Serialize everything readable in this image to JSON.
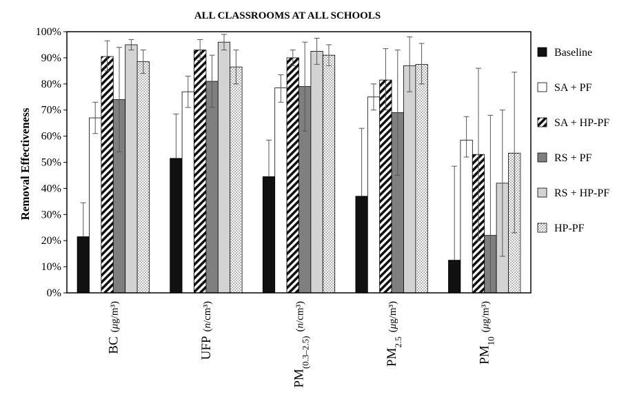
{
  "chart_data": {
    "type": "bar",
    "title": "ALL CLASSROOMS AT ALL SCHOOLS",
    "xlabel": "",
    "ylabel": "Removal Effectiveness",
    "ylim": [
      0,
      100
    ],
    "y_ticks": [
      "0%",
      "10%",
      "20%",
      "30%",
      "40%",
      "50%",
      "60%",
      "70%",
      "80%",
      "90%",
      "100%"
    ],
    "categories": [
      {
        "main": "BC",
        "sub": "",
        "unit": "(μg/m³)",
        "unit_italic": "μ"
      },
      {
        "main": "UFP",
        "sub": "",
        "unit": "(n/cm³)",
        "unit_italic": "n"
      },
      {
        "main": "PM",
        "sub": "(0.3–2.5)",
        "unit": "(n/cm³)",
        "unit_italic": "n"
      },
      {
        "main": "PM",
        "sub": "2.5",
        "unit": "(μg/m³)",
        "unit_italic": "μ"
      },
      {
        "main": "PM",
        "sub": "10",
        "unit": "(μg/m³)",
        "unit_italic": "μ"
      }
    ],
    "series": [
      {
        "name": "Baseline",
        "pattern": "solid-black",
        "values": [
          21.5,
          51.5,
          44.5,
          37,
          12.5
        ],
        "err_high": [
          34.5,
          68.5,
          58.5,
          63,
          48.5
        ]
      },
      {
        "name": "SA + PF",
        "pattern": "white",
        "values": [
          67,
          77,
          78.5,
          75,
          58.5
        ],
        "err_low": [
          61,
          71,
          73,
          70,
          52
        ],
        "err_high": [
          73,
          83,
          83.5,
          80,
          67.5
        ]
      },
      {
        "name": "SA + HP-PF",
        "pattern": "diagonal-stripes",
        "values": [
          90.5,
          93,
          90,
          81.5,
          53
        ],
        "err_low": [
          85,
          89,
          87,
          70,
          20
        ],
        "err_high": [
          96.5,
          97,
          93,
          93.5,
          86
        ]
      },
      {
        "name": "RS + PF",
        "pattern": "dark-gray",
        "values": [
          74,
          81,
          79,
          69,
          22
        ],
        "err_low": [
          54,
          71,
          62,
          45,
          0
        ],
        "err_high": [
          94,
          91,
          96,
          93,
          68
        ]
      },
      {
        "name": "RS + HP-PF",
        "pattern": "light-gray",
        "values": [
          95,
          96,
          92.5,
          87,
          42
        ],
        "err_low": [
          93,
          93,
          87.5,
          77,
          14
        ],
        "err_high": [
          97,
          99,
          97.5,
          98,
          70
        ]
      },
      {
        "name": "HP-PF",
        "pattern": "dots",
        "values": [
          88.5,
          86.5,
          91,
          87.5,
          53.5
        ],
        "err_low": [
          84,
          80,
          87,
          80,
          23
        ],
        "err_high": [
          93,
          93,
          95,
          95.5,
          84.5
        ]
      }
    ],
    "legend_position": "right",
    "grid": false
  }
}
